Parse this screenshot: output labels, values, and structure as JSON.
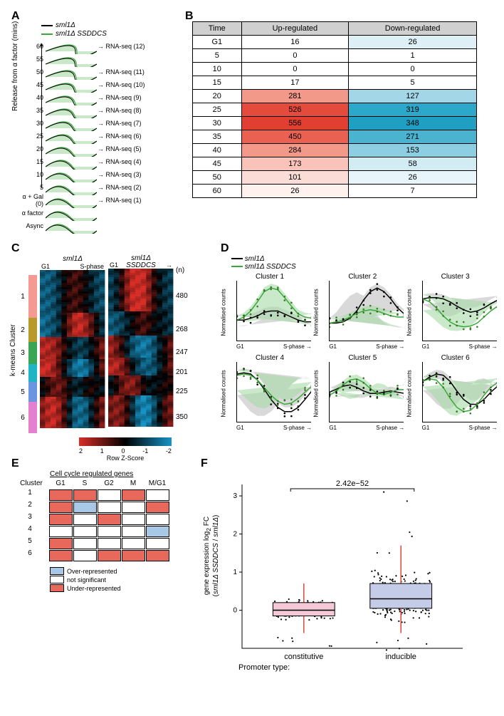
{
  "panelA": {
    "label": "A",
    "legend": {
      "line1": "sml1Δ",
      "line2": "sml1Δ SSDDCS"
    },
    "legend_colors": {
      "line1": "#000000",
      "line2": "#39a939"
    },
    "y_axis_label": "Release from α factor (mins)",
    "peak_fill": "#c8e8c8",
    "peak_stroke_dark": "#000000",
    "peak_stroke_green": "#39a939",
    "arrow_text_prefix": "→ RNA-seq (",
    "arrow_text_suffix": ")",
    "rows": [
      {
        "y": "60",
        "rna": "12"
      },
      {
        "y": "55",
        "rna": null
      },
      {
        "y": "50",
        "rna": "11"
      },
      {
        "y": "45",
        "rna": "10"
      },
      {
        "y": "40",
        "rna": "9"
      },
      {
        "y": "35",
        "rna": "8"
      },
      {
        "y": "30",
        "rna": "7"
      },
      {
        "y": "25",
        "rna": "6"
      },
      {
        "y": "20",
        "rna": "5"
      },
      {
        "y": "15",
        "rna": "4"
      },
      {
        "y": "10",
        "rna": "3"
      },
      {
        "y": "5",
        "rna": "2"
      },
      {
        "y": "α + Gal (0)",
        "rna": "1"
      },
      {
        "y": "α factor",
        "rna": null
      },
      {
        "y": "Async",
        "rna": null
      }
    ]
  },
  "panelB": {
    "label": "B",
    "headers": [
      "Time",
      "Up-regulated",
      "Down-regulated"
    ],
    "header_bg": "#d0d0d0",
    "up_color_scale": {
      "min": "#ffffff",
      "mid": "#f8a28e",
      "max": "#e84c3d"
    },
    "down_color_scale": {
      "min": "#ffffff",
      "mid": "#9fd5e8",
      "max": "#1fa5c9"
    },
    "rows": [
      {
        "time": "G1",
        "up": 16,
        "down": 26,
        "up_bg": "#ffffff",
        "down_bg": "#def0f6"
      },
      {
        "time": "5",
        "up": 0,
        "down": 1,
        "up_bg": "#ffffff",
        "down_bg": "#ffffff"
      },
      {
        "time": "10",
        "up": 0,
        "down": 0,
        "up_bg": "#ffffff",
        "down_bg": "#ffffff"
      },
      {
        "time": "15",
        "up": 17,
        "down": 5,
        "up_bg": "#ffffff",
        "down_bg": "#ffffff"
      },
      {
        "time": "20",
        "up": 281,
        "down": 127,
        "up_bg": "#f3998a",
        "down_bg": "#a3d7e8"
      },
      {
        "time": "25",
        "up": 526,
        "down": 319,
        "up_bg": "#e54b3c",
        "down_bg": "#2ca8ca"
      },
      {
        "time": "30",
        "up": 556,
        "down": 348,
        "up_bg": "#e03f31",
        "down_bg": "#1fa0c3"
      },
      {
        "time": "35",
        "up": 450,
        "down": 271,
        "up_bg": "#ea6152",
        "down_bg": "#49b3d0"
      },
      {
        "time": "40",
        "up": 284,
        "down": 153,
        "up_bg": "#f3998a",
        "down_bg": "#8ecee3"
      },
      {
        "time": "45",
        "up": 173,
        "down": 58,
        "up_bg": "#f9c3ba",
        "down_bg": "#d2ecf4"
      },
      {
        "time": "50",
        "up": 101,
        "down": 26,
        "up_bg": "#fcdcd7",
        "down_bg": "#e8f5fa"
      },
      {
        "time": "60",
        "up": 26,
        "down": 7,
        "up_bg": "#fef1ee",
        "down_bg": "#ffffff"
      }
    ]
  },
  "panelC": {
    "label": "C",
    "col1_title": "sml1Δ",
    "col2_title": "sml1Δ\nSSDDCS",
    "x_axis": {
      "start": "G1",
      "end": "S-phase"
    },
    "n_label": "(n)",
    "y_axis_label": "k-means Cluster",
    "colorscale": {
      "min": -2,
      "max": 2,
      "label": "Row Z-Score",
      "low": "#1694c6",
      "mid": "#000000",
      "high": "#d92e27"
    },
    "clusters": [
      {
        "id": "1",
        "n": 480,
        "color": "#f59a93",
        "h": 60
      },
      {
        "id": "2",
        "n": 268,
        "color": "#b89a2a",
        "h": 34
      },
      {
        "id": "3",
        "n": 247,
        "color": "#3aa555",
        "h": 31
      },
      {
        "id": "4",
        "n": 201,
        "color": "#1fb5c5",
        "h": 25
      },
      {
        "id": "5",
        "n": 225,
        "color": "#6a95e0",
        "h": 28
      },
      {
        "id": "6",
        "n": 350,
        "color": "#e580d0",
        "h": 44
      }
    ]
  },
  "panelD": {
    "label": "D",
    "legend": {
      "line1": "sml1Δ",
      "line2": "sml1Δ SSDDCS",
      "color1": "#000000",
      "color2": "#39a939"
    },
    "shade_dark": "#bfbfbf",
    "shade_green": "#a6d8a6",
    "y_label": "Normalised counts",
    "x_axis": {
      "start": "G1",
      "end": "S-phase"
    },
    "clusters": [
      {
        "title": "Cluster 1",
        "dark": [
          0.35,
          0.35,
          0.38,
          0.42,
          0.48,
          0.5,
          0.5,
          0.45,
          0.4,
          0.35,
          0.32,
          0.32
        ],
        "green": [
          0.35,
          0.4,
          0.5,
          0.65,
          0.82,
          0.88,
          0.85,
          0.72,
          0.58,
          0.45,
          0.4,
          0.38
        ]
      },
      {
        "title": "Cluster 2",
        "dark": [
          0.3,
          0.3,
          0.32,
          0.38,
          0.5,
          0.68,
          0.82,
          0.88,
          0.82,
          0.7,
          0.55,
          0.45
        ],
        "green": [
          0.3,
          0.32,
          0.35,
          0.4,
          0.46,
          0.5,
          0.52,
          0.5,
          0.46,
          0.42,
          0.4,
          0.4
        ]
      },
      {
        "title": "Cluster 3",
        "dark": [
          0.7,
          0.72,
          0.72,
          0.7,
          0.65,
          0.58,
          0.52,
          0.48,
          0.5,
          0.55,
          0.62,
          0.68
        ],
        "green": [
          0.7,
          0.65,
          0.55,
          0.42,
          0.32,
          0.26,
          0.24,
          0.25,
          0.3,
          0.4,
          0.5,
          0.58
        ]
      },
      {
        "title": "Cluster 4",
        "dark": [
          0.8,
          0.82,
          0.8,
          0.7,
          0.55,
          0.38,
          0.25,
          0.18,
          0.18,
          0.25,
          0.38,
          0.52
        ],
        "green": [
          0.78,
          0.8,
          0.78,
          0.7,
          0.58,
          0.45,
          0.35,
          0.3,
          0.32,
          0.4,
          0.5,
          0.6
        ]
      },
      {
        "title": "Cluster 5",
        "dark": [
          0.5,
          0.55,
          0.6,
          0.62,
          0.58,
          0.52,
          0.48,
          0.48,
          0.5,
          0.52,
          0.5,
          0.48
        ],
        "green": [
          0.45,
          0.52,
          0.62,
          0.7,
          0.72,
          0.66,
          0.56,
          0.48,
          0.46,
          0.5,
          0.54,
          0.54
        ]
      },
      {
        "title": "Cluster 6",
        "dark": [
          0.68,
          0.75,
          0.8,
          0.78,
          0.68,
          0.52,
          0.38,
          0.3,
          0.3,
          0.38,
          0.5,
          0.6
        ],
        "green": [
          0.68,
          0.72,
          0.7,
          0.58,
          0.4,
          0.25,
          0.18,
          0.2,
          0.3,
          0.45,
          0.58,
          0.66
        ]
      }
    ]
  },
  "panelE": {
    "label": "E",
    "title": "Cell cycle regulated genes",
    "columns": [
      "G1",
      "S",
      "G2",
      "M",
      "M/G1"
    ],
    "row_label": "Cluster",
    "colors": {
      "over": "#a8c8e8",
      "under": "#e8695c",
      "ns": "#ffffff"
    },
    "legend": [
      {
        "label": "Over-represented",
        "color": "#a8c8e8"
      },
      {
        "label": "not significant",
        "color": "#ffffff"
      },
      {
        "label": "Under-represented",
        "color": "#e8695c"
      }
    ],
    "data": [
      [
        "under",
        "under",
        "ns",
        "under",
        "ns"
      ],
      [
        "under",
        "over",
        "ns",
        "ns",
        "under"
      ],
      [
        "under",
        "ns",
        "under",
        "ns",
        "ns"
      ],
      [
        "ns",
        "ns",
        "ns",
        "ns",
        "over"
      ],
      [
        "under",
        "ns",
        "ns",
        "ns",
        "ns"
      ],
      [
        "under",
        "ns",
        "under",
        "under",
        "under"
      ]
    ]
  },
  "panelF": {
    "label": "F",
    "pvalue": "2.42e−52",
    "y_label": "gene expression log₂ FC\n(sml1Δ SSDDCS / sml1Δ)",
    "x_label": "Promoter type:",
    "categories": [
      "constitutive",
      "inducible"
    ],
    "colors": {
      "constitutive": "#f4c8d6",
      "inducible": "#c5cce8",
      "whisker": "#d44a3a"
    },
    "y_ticks": [
      0,
      1,
      2,
      3
    ],
    "boxes": {
      "constitutive": {
        "q1": -0.15,
        "median": 0.0,
        "q3": 0.2,
        "wlo": -0.6,
        "whi": 0.7
      },
      "inducible": {
        "q1": 0.05,
        "median": 0.3,
        "q3": 0.7,
        "wlo": -0.6,
        "whi": 1.7
      }
    }
  }
}
